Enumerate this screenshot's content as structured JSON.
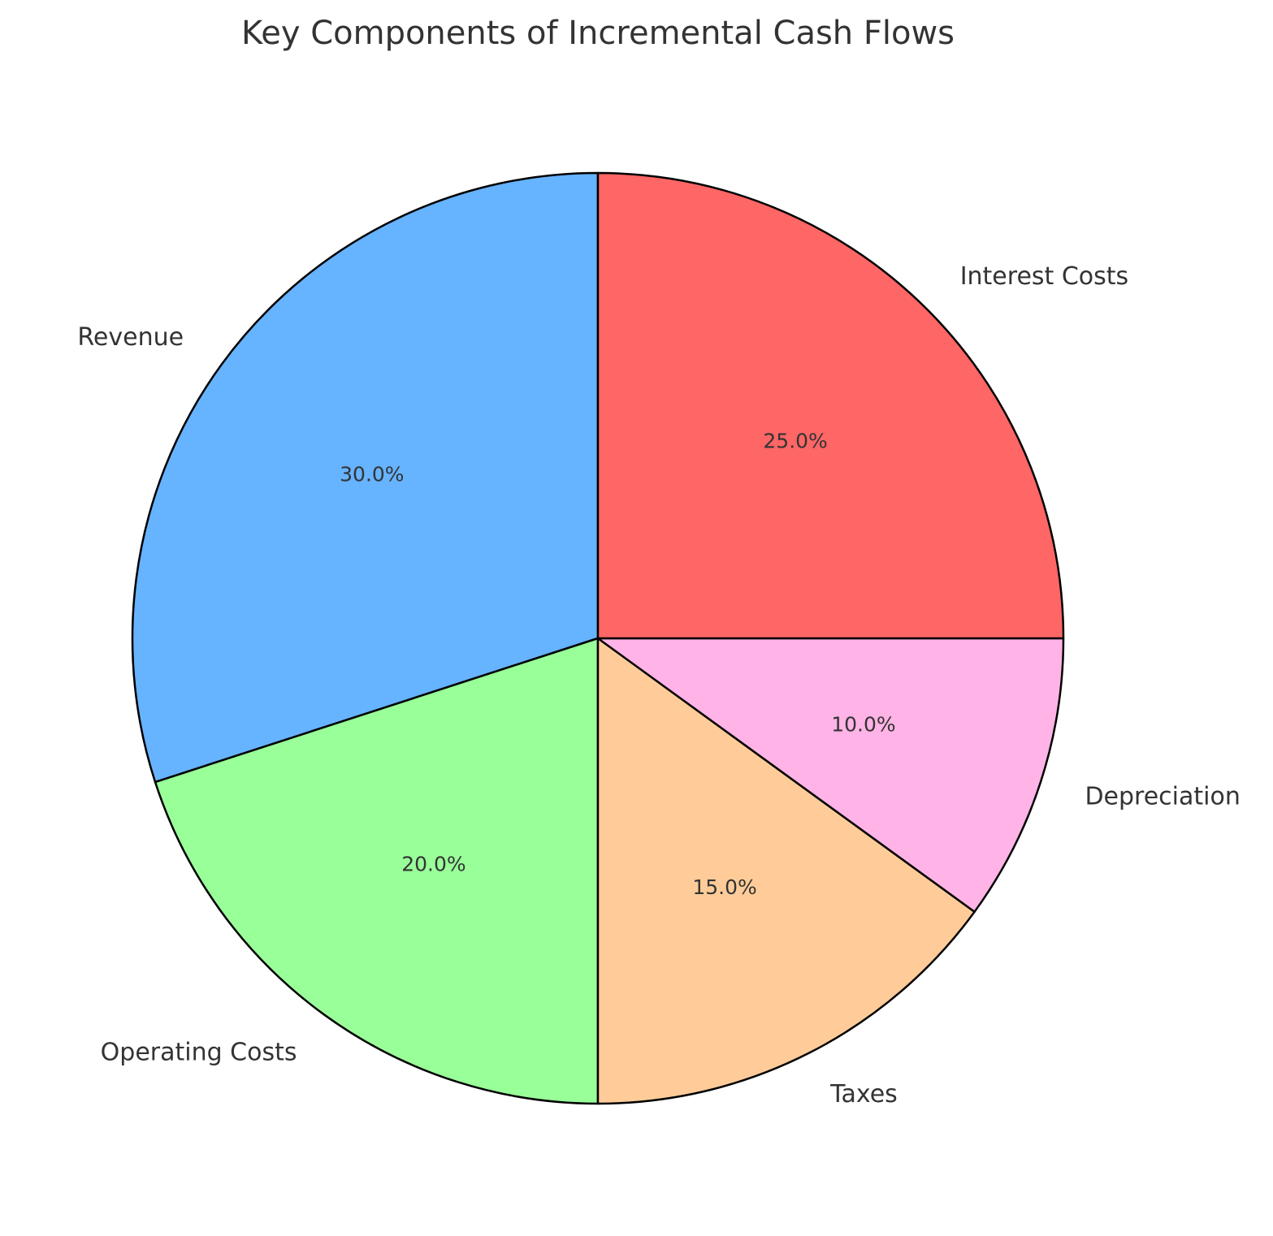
{
  "chart_data": {
    "type": "pie",
    "title": "Key Components of Incremental Cash Flows",
    "start_angle_deg": 90,
    "direction": "counterclockwise",
    "slices": [
      {
        "label": "Revenue",
        "value": 30,
        "pct_label": "30.0%",
        "color": "#66b3ff"
      },
      {
        "label": "Operating Costs",
        "value": 20,
        "pct_label": "20.0%",
        "color": "#99ff99"
      },
      {
        "label": "Taxes",
        "value": 15,
        "pct_label": "15.0%",
        "color": "#ffcc99"
      },
      {
        "label": "Depreciation",
        "value": 10,
        "pct_label": "10.0%",
        "color": "#ffb3e6"
      },
      {
        "label": "Interest Costs",
        "value": 25,
        "pct_label": "25.0%",
        "color": "#ff6666"
      }
    ],
    "edge_color": "#000000"
  }
}
